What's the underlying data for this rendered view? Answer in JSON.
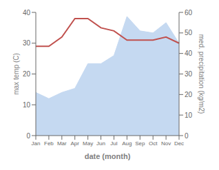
{
  "chart_data": {
    "type": "line",
    "categories": [
      "Jan",
      "Feb",
      "Mar",
      "Apr",
      "May",
      "Jun",
      "Jul",
      "Aug",
      "Sep",
      "Oct",
      "Nov",
      "Dec"
    ],
    "series": [
      {
        "type": "area",
        "color": "#c5d9f1",
        "axis": "y2",
        "values": [
          21,
          18,
          21,
          23,
          35,
          35,
          39,
          58,
          51,
          50,
          55,
          45
        ]
      },
      {
        "type": "line",
        "color": "#c0504d",
        "values": [
          29,
          29,
          32,
          38,
          38,
          35,
          34,
          31,
          31,
          31,
          32,
          30
        ]
      }
    ],
    "xlabel": "date (month)",
    "ylabel": "max temp (C)",
    "y2label": "med. precipitation (kg/m2)",
    "ylim": [
      0,
      40
    ],
    "yticks": [
      0,
      10,
      20,
      30,
      40
    ],
    "y2lim": [
      0,
      60
    ],
    "y2ticks": [
      0,
      10,
      20,
      30,
      40,
      50,
      60
    ],
    "grid": false
  }
}
